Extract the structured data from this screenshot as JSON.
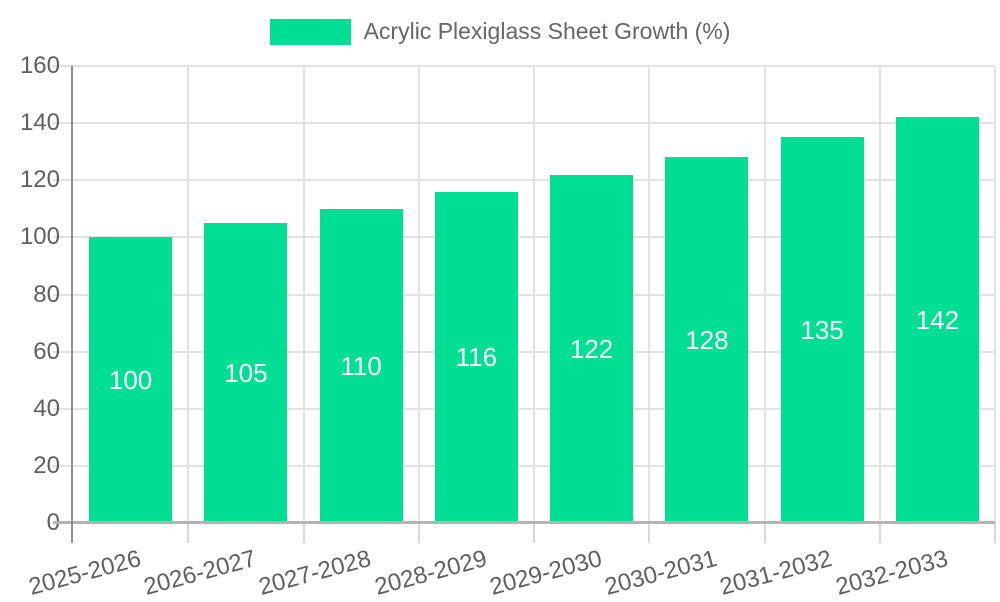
{
  "chart_data": {
    "type": "bar",
    "legend_label": "Acrylic Plexiglass Sheet Growth (%)",
    "legend_position": "top",
    "categories": [
      "2025-2026",
      "2026-2027",
      "2027-2028",
      "2028-2029",
      "2029-2030",
      "2030-2031",
      "2031-2032",
      "2032-2033"
    ],
    "values": [
      100,
      105,
      110,
      116,
      122,
      128,
      135,
      142
    ],
    "yticks": [
      0,
      20,
      40,
      60,
      80,
      100,
      120,
      140,
      160
    ],
    "ylim": [
      0,
      160
    ],
    "grid": true,
    "bar_color": "#00de94",
    "value_label_color": "#ffffff"
  },
  "colors": {
    "background": "#ffffff",
    "axis_text": "#5f5f5f",
    "legend_text": "#666666",
    "gridline": "#e2e2e2",
    "y_axis_line": "#8f8f8f",
    "x_axis_line": "#b3b3b3"
  }
}
